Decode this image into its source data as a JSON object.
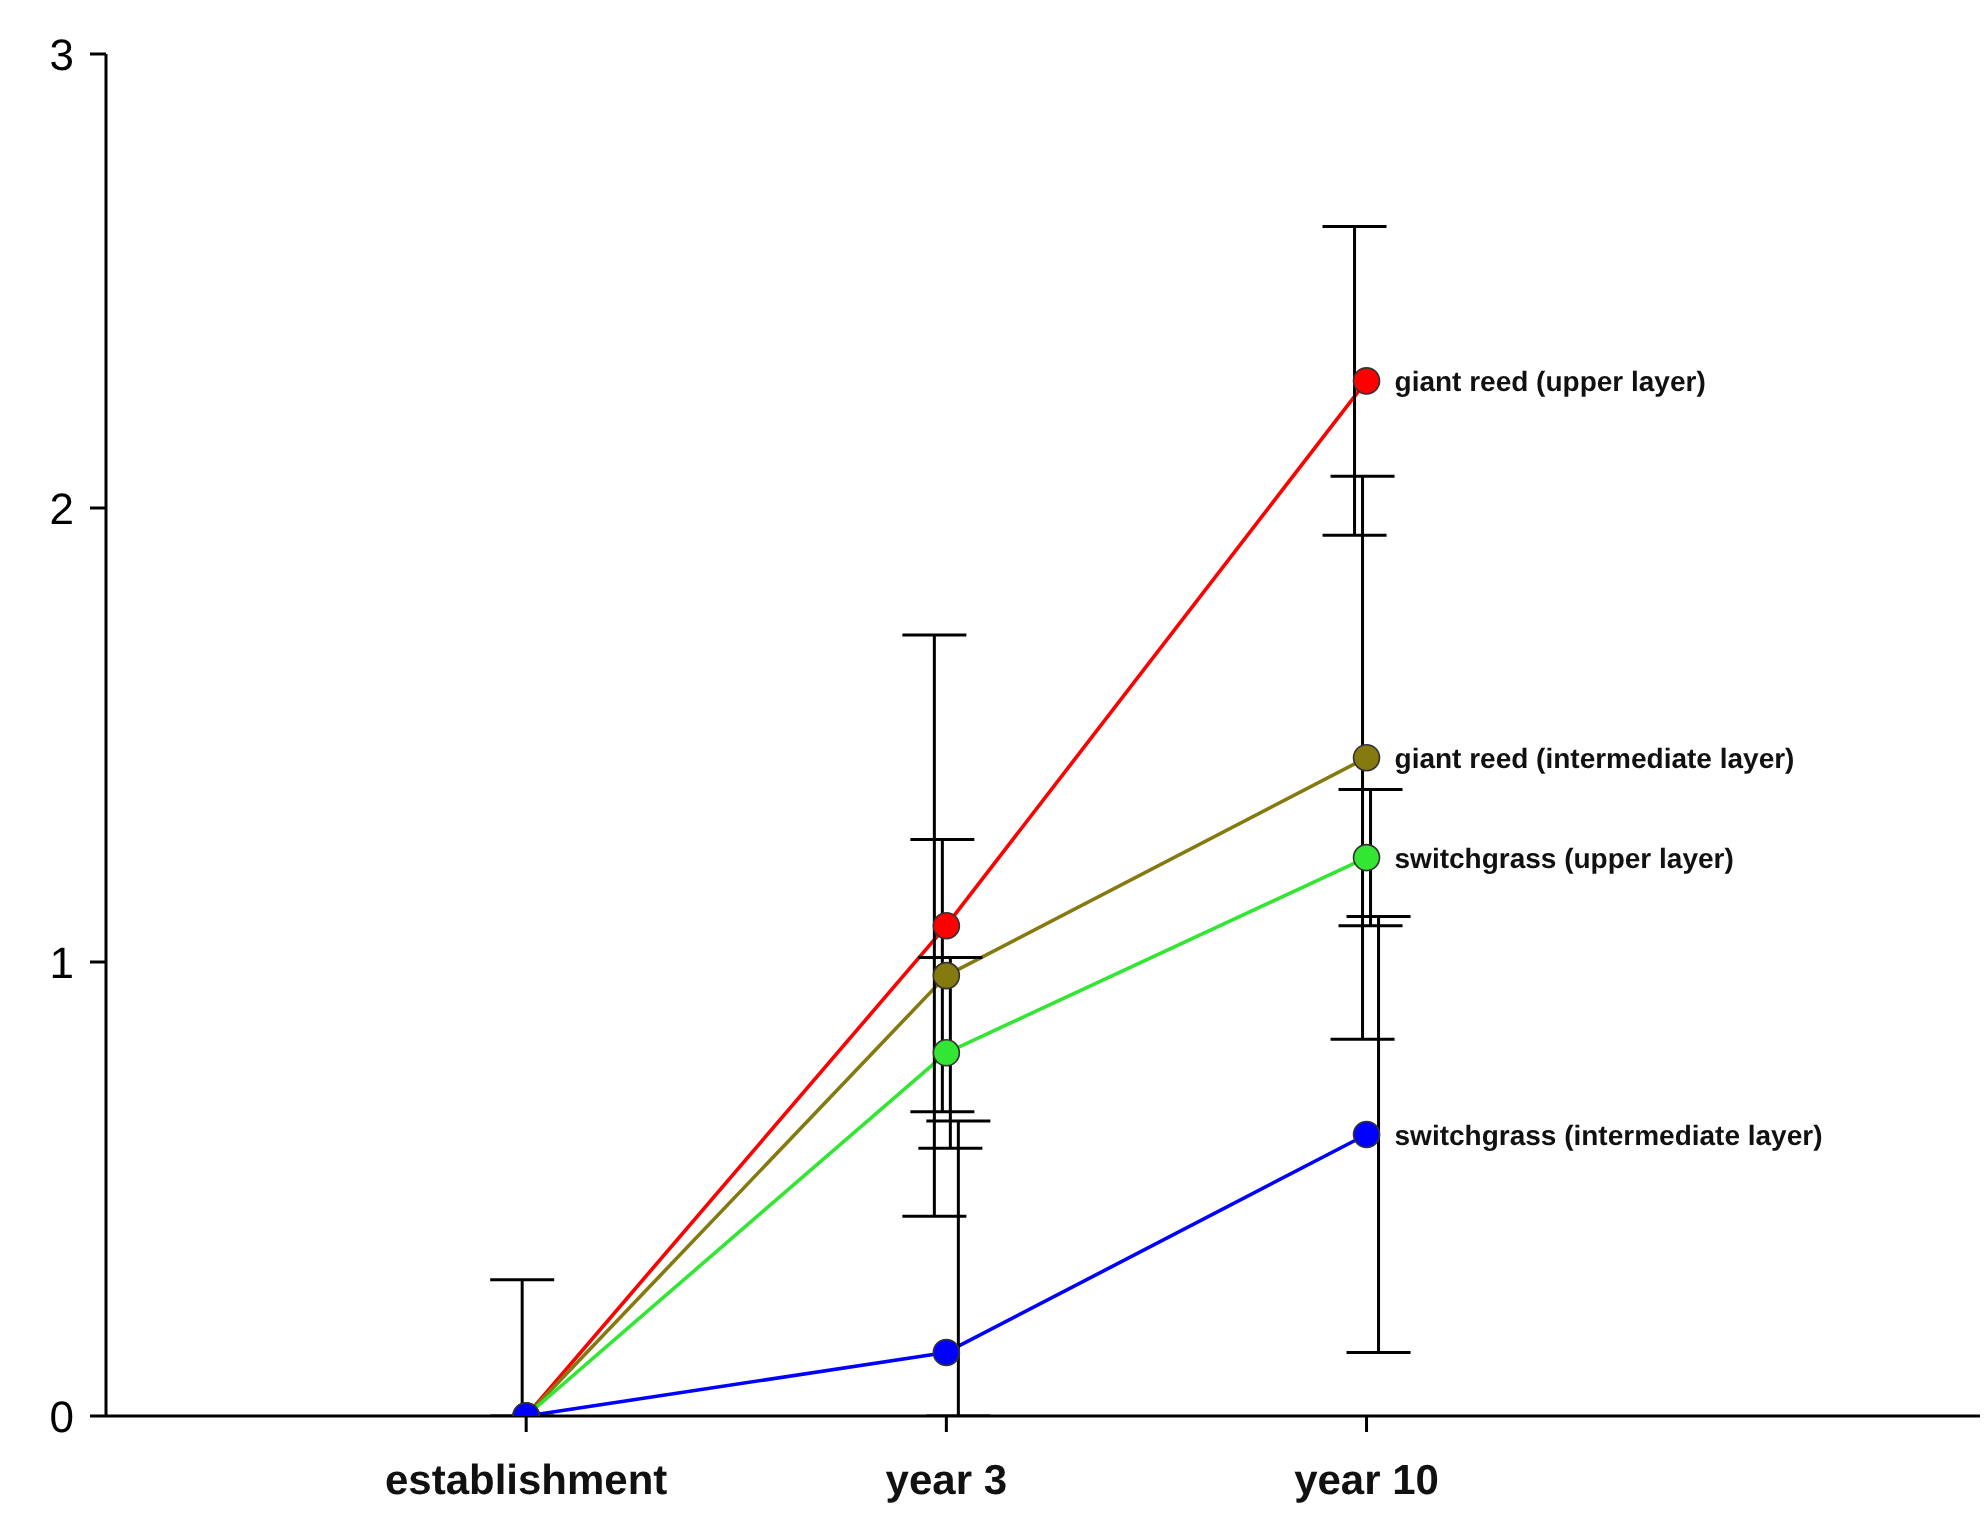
{
  "chart_data": {
    "type": "line",
    "categories": [
      "establishment",
      "year 3",
      "year 10"
    ],
    "series": [
      {
        "name": "giant reed (upper layer)",
        "color": "#ff0000",
        "values": [
          0,
          1.08,
          2.28
        ],
        "errors": [
          null,
          0.64,
          0.34
        ]
      },
      {
        "name": "giant reed (intermediate layer)",
        "color": "#857a10",
        "values": [
          0,
          0.97,
          1.45
        ],
        "errors": [
          [
            0,
            0.3
          ],
          0.3,
          0.62
        ]
      },
      {
        "name": "switchgrass (upper layer)",
        "color": "#33e633",
        "values": [
          0,
          0.8,
          1.23
        ],
        "errors": [
          null,
          0.21,
          0.15
        ]
      },
      {
        "name": "switchgrass (intermediate layer)",
        "color": "#0000ff",
        "values": [
          0,
          0.14,
          0.62
        ],
        "errors": [
          null,
          [
            0,
            0.65
          ],
          0.48
        ]
      }
    ],
    "ylim": [
      0,
      3
    ],
    "yticks": [
      0,
      1,
      2,
      3
    ],
    "grid": false,
    "legend": false,
    "marker": "circle",
    "line_style": "solid"
  }
}
